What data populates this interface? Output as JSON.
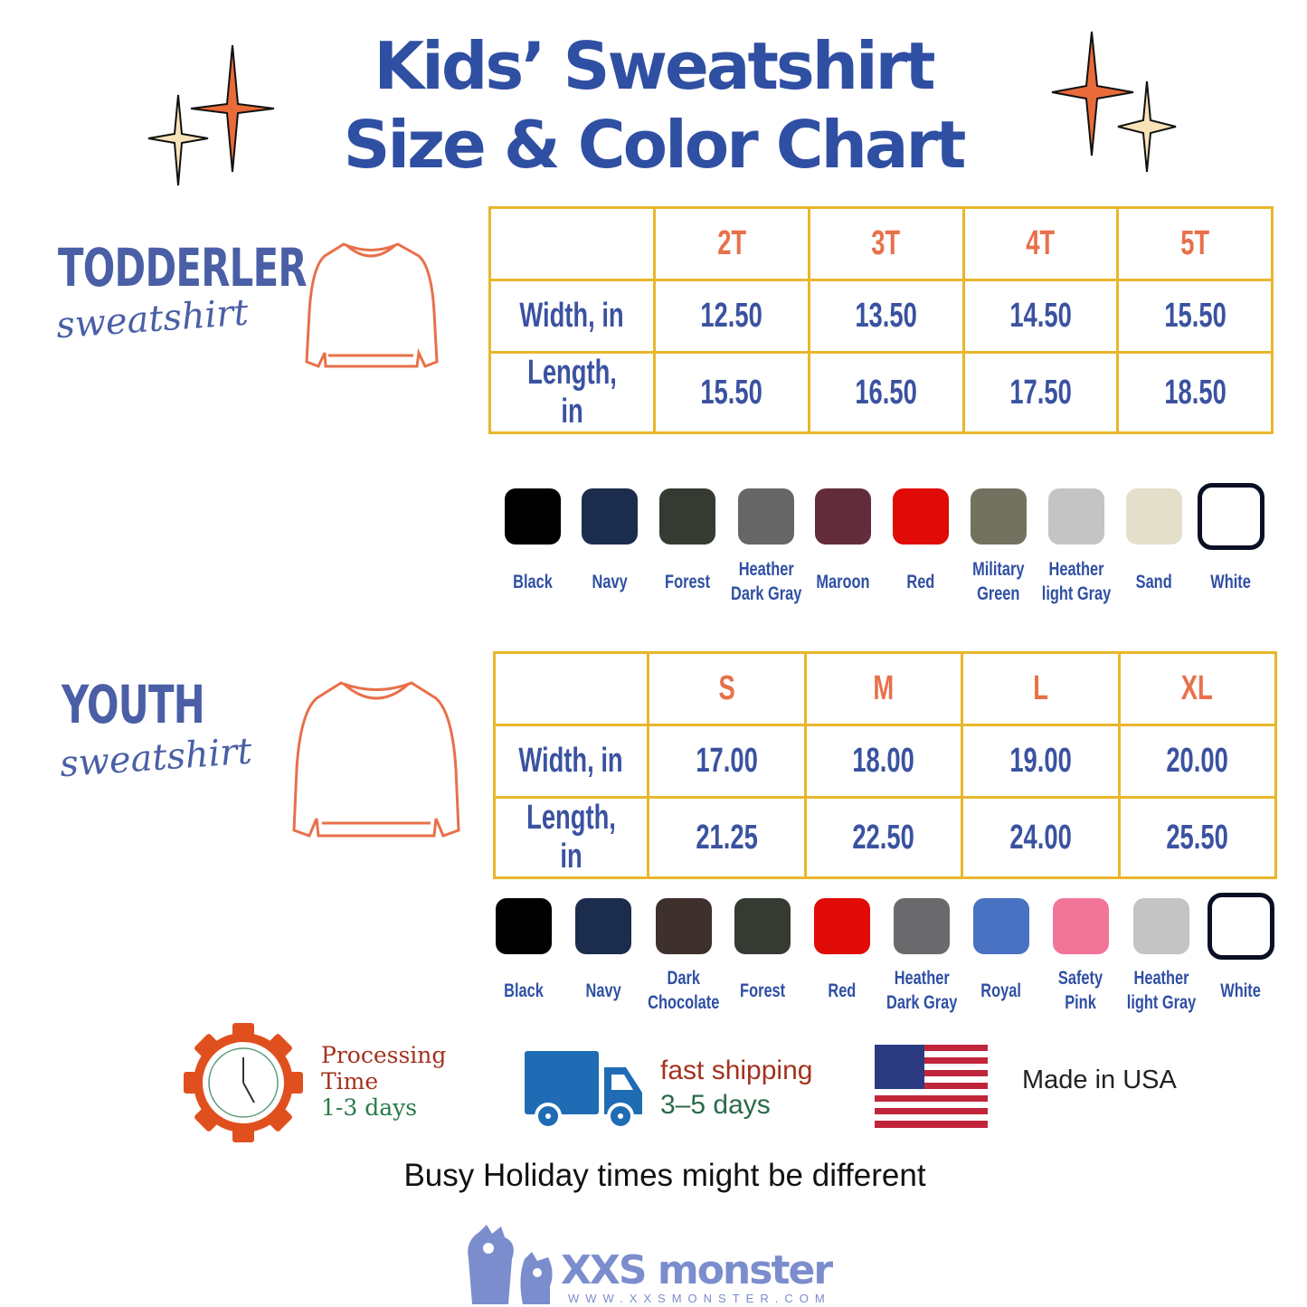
{
  "title": {
    "line1": "Kids’ Sweatshirt",
    "line2": "Size & Color Chart"
  },
  "colors": {
    "title": "#2f4fa3",
    "accent": "#e8704a",
    "table_border": "#e9b62c"
  },
  "toddler": {
    "category": "TODDERLER",
    "subtitle": "sweatshirt",
    "headers": [
      "",
      "2T",
      "3T",
      "4T",
      "5T"
    ],
    "rows": [
      {
        "label": "Width, in",
        "values": [
          "12.50",
          "13.50",
          "14.50",
          "15.50"
        ]
      },
      {
        "label": "Length, in",
        "values": [
          "15.50",
          "16.50",
          "17.50",
          "18.50"
        ]
      }
    ],
    "swatches": [
      {
        "name": "Black",
        "color": "#000000"
      },
      {
        "name": "Navy",
        "color": "#1c2c4c"
      },
      {
        "name": "Forest",
        "color": "#353a32"
      },
      {
        "name": "Heather\nDark Gray",
        "color": "#666666"
      },
      {
        "name": "Maroon",
        "color": "#622c3b"
      },
      {
        "name": "Red",
        "color": "#e00a06"
      },
      {
        "name": "Military\nGreen",
        "color": "#737260"
      },
      {
        "name": "Heather\nlight Gray",
        "color": "#c4c4c4"
      },
      {
        "name": "Sand",
        "color": "#e4dfca"
      },
      {
        "name": "White",
        "color": "#ffffff"
      }
    ]
  },
  "youth": {
    "category": "YOUTH",
    "subtitle": "sweatshirt",
    "headers": [
      "",
      "S",
      "M",
      "L",
      "XL"
    ],
    "rows": [
      {
        "label": "Width, in",
        "values": [
          "17.00",
          "18.00",
          "19.00",
          "20.00"
        ]
      },
      {
        "label": "Length, in",
        "values": [
          "21.25",
          "22.50",
          "24.00",
          "25.50"
        ]
      }
    ],
    "swatches": [
      {
        "name": "Black",
        "color": "#000000"
      },
      {
        "name": "Navy",
        "color": "#1c2c4c"
      },
      {
        "name": "Dark\nChocolate",
        "color": "#3e302c"
      },
      {
        "name": "Forest",
        "color": "#353a32"
      },
      {
        "name": "Red",
        "color": "#e00a06"
      },
      {
        "name": "Heather\nDark Gray",
        "color": "#6a6a6c"
      },
      {
        "name": "Royal",
        "color": "#4a72c2"
      },
      {
        "name": "Safety\nPink",
        "color": "#f27599"
      },
      {
        "name": "Heather\nlight Gray",
        "color": "#c4c4c4"
      },
      {
        "name": "White",
        "color": "#ffffff"
      }
    ]
  },
  "info": {
    "processing": {
      "line1": "Processing",
      "line2": "Time",
      "line3": "1-3 days"
    },
    "shipping": {
      "line1": "fast shipping",
      "line2": "3–5 days"
    },
    "origin": "Made in USA",
    "note": "Busy Holiday times might be different"
  },
  "logo": {
    "name": "XXS monster",
    "url": "WWW.XXSMONSTER.COM"
  }
}
